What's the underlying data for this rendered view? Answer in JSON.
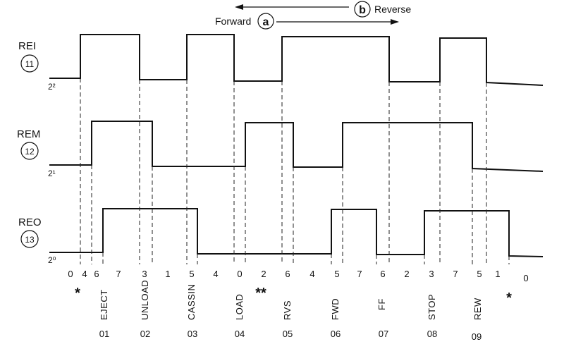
{
  "direction": {
    "forward_label": "Forward",
    "forward_letter": "a",
    "reverse_label": "Reverse",
    "reverse_letter": "b"
  },
  "signals": [
    {
      "name": "REI",
      "number": "11",
      "power": "2²"
    },
    {
      "name": "REM",
      "number": "12",
      "power": "2¹"
    },
    {
      "name": "REO",
      "number": "13",
      "power": "2⁰"
    }
  ],
  "state_codes": [
    "0",
    "4",
    "6",
    "7",
    "3",
    "1",
    "5",
    "4",
    "0",
    "2",
    "6",
    "4",
    "5",
    "7",
    "6",
    "2",
    "3",
    "7",
    "5",
    "1",
    "0"
  ],
  "commands": [
    {
      "label": "EJECT",
      "number": "01"
    },
    {
      "label": "UNLOAD",
      "number": "02"
    },
    {
      "label": "CASSIN",
      "number": "03"
    },
    {
      "label": "LOAD",
      "number": "04"
    },
    {
      "label": "RVS",
      "number": "05"
    },
    {
      "label": "FWD",
      "number": "06"
    },
    {
      "label": "FF",
      "number": "07"
    },
    {
      "label": "STOP",
      "number": "08"
    },
    {
      "label": "REW",
      "number": "09"
    }
  ],
  "markers": {
    "single": "*",
    "double": "**",
    "end": "*"
  }
}
